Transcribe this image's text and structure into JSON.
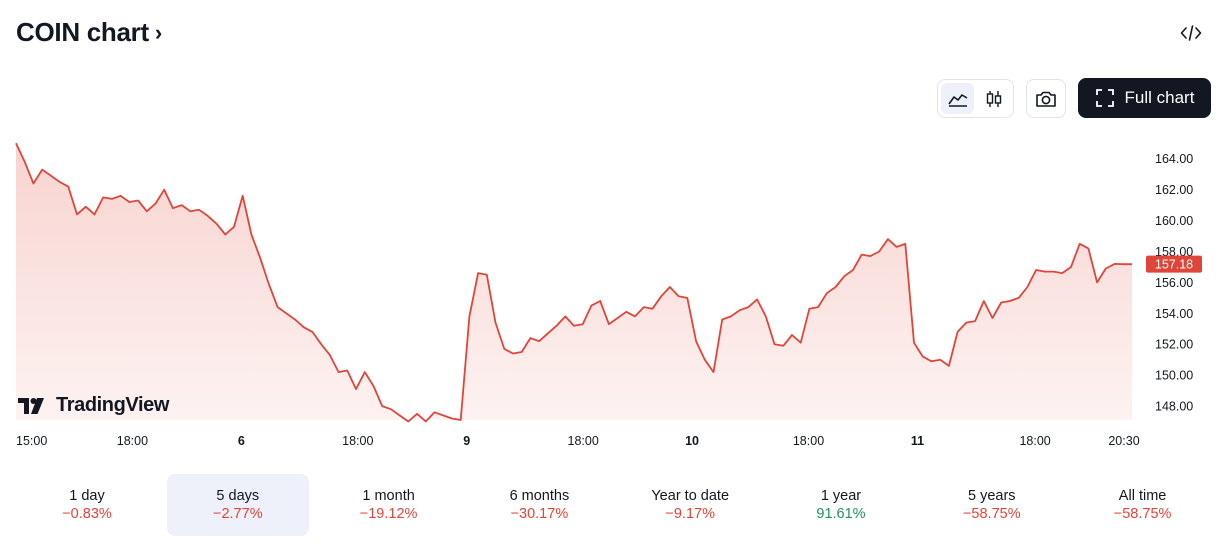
{
  "header": {
    "title": "COIN chart",
    "chevron": "›"
  },
  "toolbar": {
    "line_icon": "line-chart-icon",
    "candles_icon": "candlestick-icon",
    "camera_icon": "camera-icon",
    "embed_icon": "code-embed-icon",
    "full_chart_label": "Full chart",
    "fullscreen_icon": "fullscreen-icon"
  },
  "branding": {
    "logo_text": "TradingView"
  },
  "colors": {
    "line": "#e0453a",
    "fill_top": "#f8d3cf",
    "fill_bottom": "#fdf3f2",
    "price_tag_bg": "#e0453a",
    "positive": "#22915a",
    "negative": "#e0453a"
  },
  "chart_data": {
    "type": "area",
    "ylim": [
      147.1,
      165.6
    ],
    "y_ticks": [
      "164.00",
      "162.00",
      "160.00",
      "158.00",
      "156.00",
      "154.00",
      "152.00",
      "150.00",
      "148.00"
    ],
    "y_tick_values": [
      164,
      162,
      160,
      158,
      156,
      154,
      152,
      150,
      148
    ],
    "x_ticks": [
      {
        "label": "15:00",
        "bold": false,
        "at": 0.0
      },
      {
        "label": "18:00",
        "bold": false,
        "at": 9.3
      },
      {
        "label": "6",
        "bold": true,
        "at": 18.0
      },
      {
        "label": "18:00",
        "bold": false,
        "at": 27.3
      },
      {
        "label": "9",
        "bold": true,
        "at": 36.0
      },
      {
        "label": "18:00",
        "bold": false,
        "at": 45.3
      },
      {
        "label": "10",
        "bold": true,
        "at": 54.0
      },
      {
        "label": "18:00",
        "bold": false,
        "at": 63.3
      },
      {
        "label": "11",
        "bold": true,
        "at": 72.0
      },
      {
        "label": "18:00",
        "bold": false,
        "at": 81.4
      },
      {
        "label": "20:30",
        "bold": false,
        "at": 88.5
      }
    ],
    "last_price": "157.18",
    "x_count": 90,
    "values": [
      165.0,
      163.8,
      162.4,
      163.3,
      162.9,
      162.5,
      162.2,
      160.4,
      160.9,
      160.4,
      161.5,
      161.4,
      161.6,
      161.2,
      161.3,
      160.6,
      161.1,
      162.0,
      160.8,
      161.0,
      160.6,
      160.7,
      160.3,
      159.8,
      159.1,
      159.6,
      161.6,
      159.1,
      157.6,
      155.9,
      154.4,
      154.0,
      153.6,
      153.1,
      152.8,
      152.0,
      151.3,
      150.2,
      150.3,
      149.1,
      150.2,
      149.3,
      148.0,
      147.8,
      147.4,
      147.0,
      147.5,
      147.0,
      147.6,
      147.4,
      147.2,
      147.1,
      153.8,
      156.6,
      156.5,
      153.4,
      151.7,
      151.4,
      151.5,
      152.4,
      152.2,
      152.7,
      153.2,
      153.8,
      153.2,
      153.3,
      154.5,
      154.8,
      153.3,
      153.7,
      154.1,
      153.8,
      154.4,
      154.3,
      155.1,
      155.7,
      155.1,
      155.0,
      152.2,
      151.0,
      150.2,
      153.6,
      153.8,
      154.2,
      154.4,
      154.9,
      153.8,
      152.0,
      151.9,
      152.6
    ]
  },
  "chart_data_tail": [
    152.6,
    152.1,
    154.3,
    154.4,
    155.3,
    155.7,
    156.4,
    156.8,
    157.8,
    157.7,
    158.0,
    158.8,
    158.3,
    158.5,
    152.1,
    151.2,
    150.9,
    151.0,
    150.6,
    152.8,
    153.4,
    153.5,
    154.8,
    153.7,
    154.7,
    154.8,
    155.0,
    155.7,
    156.8,
    156.7,
    156.7,
    156.6,
    157.0,
    158.5,
    158.2,
    156.0,
    156.9,
    157.2,
    157.18,
    157.18
  ],
  "periods": [
    {
      "label": "1 day",
      "change": "−0.83%",
      "trend": "neg",
      "selected": false
    },
    {
      "label": "5 days",
      "change": "−2.77%",
      "trend": "neg",
      "selected": true
    },
    {
      "label": "1 month",
      "change": "−19.12%",
      "trend": "neg",
      "selected": false
    },
    {
      "label": "6 months",
      "change": "−30.17%",
      "trend": "neg",
      "selected": false
    },
    {
      "label": "Year to date",
      "change": "−9.17%",
      "trend": "neg",
      "selected": false
    },
    {
      "label": "1 year",
      "change": "91.61%",
      "trend": "pos",
      "selected": false
    },
    {
      "label": "5 years",
      "change": "−58.75%",
      "trend": "neg",
      "selected": false
    },
    {
      "label": "All time",
      "change": "−58.75%",
      "trend": "neg",
      "selected": false
    }
  ]
}
